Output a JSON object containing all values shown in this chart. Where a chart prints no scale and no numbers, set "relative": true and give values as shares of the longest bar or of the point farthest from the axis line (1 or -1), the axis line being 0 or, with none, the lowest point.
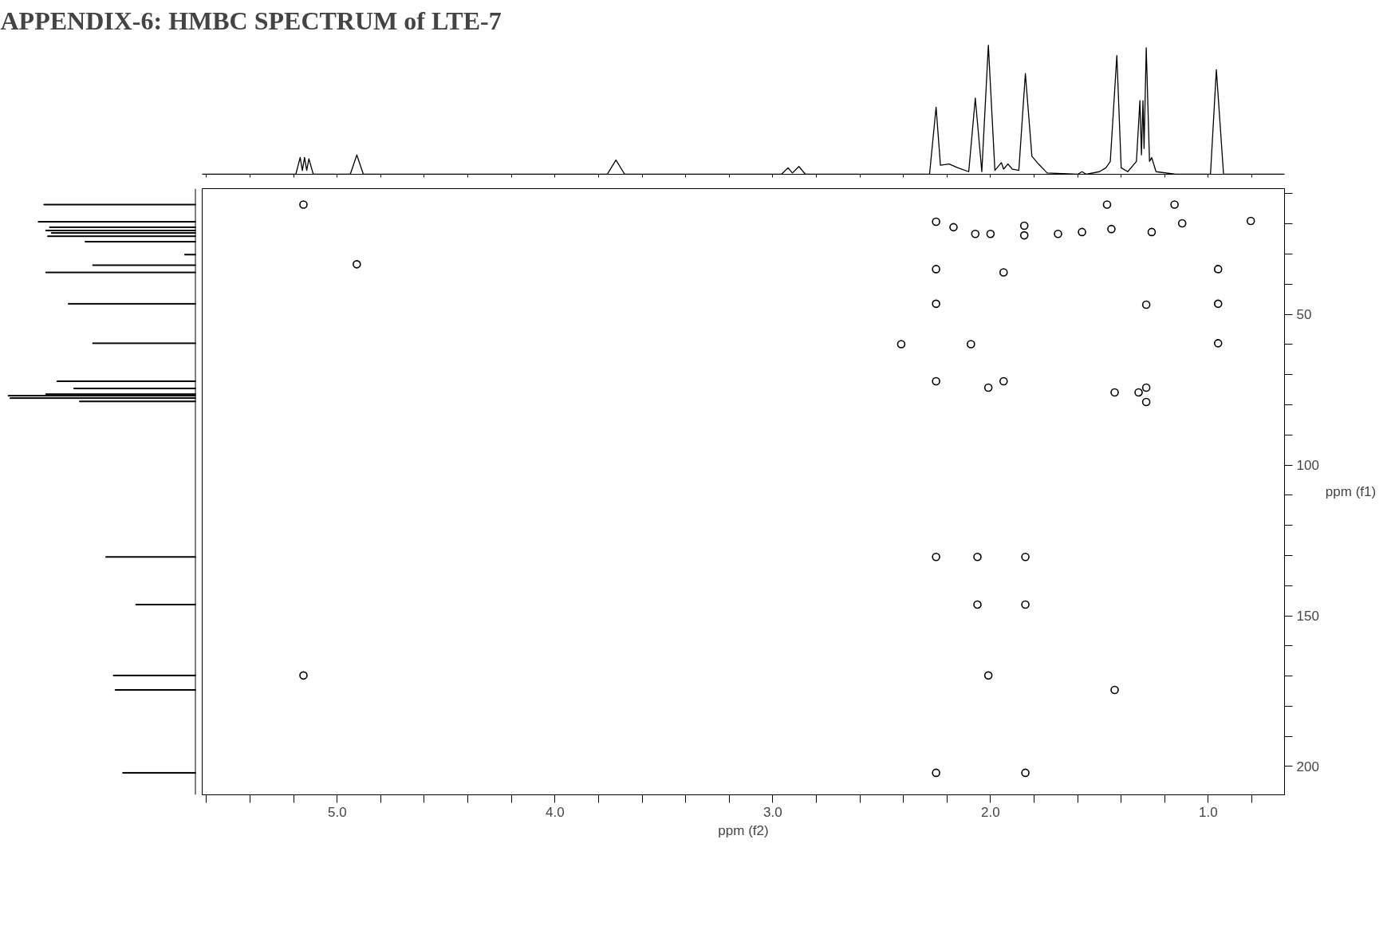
{
  "chart_data": [
    {
      "type": "line",
      "title": "APPENDIX-6: HMBC SPECTRUM of LTE-7",
      "relative": true,
      "tick_labels": false,
      "color": "#000000",
      "xlim": [
        5.62,
        0.65
      ],
      "x": [
        5.62,
        5.19,
        5.17,
        5.16,
        5.15,
        5.14,
        5.13,
        5.11,
        4.94,
        4.91,
        4.88,
        3.76,
        3.72,
        3.68,
        2.96,
        2.93,
        2.91,
        2.88,
        2.85,
        2.28,
        2.25,
        2.23,
        2.19,
        2.15,
        2.1,
        2.07,
        2.04,
        2.01,
        1.98,
        1.95,
        1.94,
        1.92,
        1.9,
        1.87,
        1.84,
        1.81,
        1.78,
        1.74,
        1.6,
        1.58,
        1.56,
        1.5,
        1.47,
        1.45,
        1.42,
        1.4,
        1.37,
        1.33,
        1.314,
        1.307,
        1.3,
        1.295,
        1.285,
        1.27,
        1.26,
        1.24,
        1.15,
        0.99,
        0.963,
        0.93,
        0.65
      ],
      "values": [
        0,
        0,
        0.13,
        0.03,
        0.13,
        0.03,
        0.12,
        0,
        0,
        0.15,
        0,
        0,
        0.11,
        0,
        0,
        0.05,
        0.01,
        0.06,
        0,
        0,
        0.52,
        0.07,
        0.08,
        0.05,
        0.02,
        0.59,
        0.02,
        1.0,
        0.03,
        0.09,
        0.04,
        0.08,
        0.04,
        0.03,
        0.78,
        0.14,
        0.08,
        0.01,
        0,
        0.02,
        0,
        0.02,
        0.05,
        0.1,
        0.92,
        0.05,
        0.02,
        0.1,
        0.57,
        0.15,
        0.57,
        0.2,
        0.98,
        0.1,
        0.13,
        0.02,
        0,
        0,
        0.81,
        0,
        0
      ]
    },
    {
      "type": "bar",
      "orientation": "horizontal",
      "relative": true,
      "tick_labels": false,
      "ylim": [
        209.4,
        8.3
      ],
      "color": "#000000",
      "x": [
        13.6,
        19.3,
        21.1,
        22.2,
        23.0,
        24.1,
        25.9,
        30.2,
        33.7,
        36.1,
        46.5,
        59.6,
        72.2,
        74.6,
        76.5,
        77.0,
        77.8,
        78.9,
        130.5,
        146.3,
        169.8,
        174.6,
        202.1
      ],
      "values": [
        0.81,
        0.84,
        0.78,
        0.8,
        0.77,
        0.79,
        0.59,
        0.06,
        0.55,
        0.8,
        0.68,
        0.55,
        0.74,
        0.65,
        0.8,
        1.0,
        0.99,
        0.62,
        0.48,
        0.32,
        0.44,
        0.43,
        0.39
      ]
    },
    {
      "type": "scatter",
      "xlabel": "ppm (f2)",
      "ylabel": "ppm (f1)",
      "marker": "circle",
      "color": "#000000",
      "xlim": [
        5.62,
        0.65
      ],
      "ylim": [
        209.4,
        8.3
      ],
      "xticks": [
        {
          "value": 5.6,
          "label": null
        },
        {
          "value": 5.4,
          "label": null
        },
        {
          "value": 5.2,
          "label": null
        },
        {
          "value": 5.0,
          "label": "5.0"
        },
        {
          "value": 4.8,
          "label": null
        },
        {
          "value": 4.6,
          "label": null
        },
        {
          "value": 4.4,
          "label": null
        },
        {
          "value": 4.2,
          "label": null
        },
        {
          "value": 4.0,
          "label": "4.0"
        },
        {
          "value": 3.8,
          "label": null
        },
        {
          "value": 3.6,
          "label": null
        },
        {
          "value": 3.4,
          "label": null
        },
        {
          "value": 3.2,
          "label": null
        },
        {
          "value": 3.0,
          "label": "3.0"
        },
        {
          "value": 2.8,
          "label": null
        },
        {
          "value": 2.6,
          "label": null
        },
        {
          "value": 2.4,
          "label": null
        },
        {
          "value": 2.2,
          "label": null
        },
        {
          "value": 2.0,
          "label": "2.0"
        },
        {
          "value": 1.8,
          "label": null
        },
        {
          "value": 1.6,
          "label": null
        },
        {
          "value": 1.4,
          "label": null
        },
        {
          "value": 1.2,
          "label": null
        },
        {
          "value": 1.0,
          "label": "1.0"
        },
        {
          "value": 0.8,
          "label": null
        }
      ],
      "yticks": [
        {
          "value": 10,
          "label": null
        },
        {
          "value": 20,
          "label": null
        },
        {
          "value": 30,
          "label": null
        },
        {
          "value": 40,
          "label": null
        },
        50,
        {
          "value": 60,
          "label": null
        },
        {
          "value": 70,
          "label": null
        },
        {
          "value": 80,
          "label": null
        },
        {
          "value": 90,
          "label": null
        },
        100,
        {
          "value": 110,
          "label": null
        },
        {
          "value": 120,
          "label": null
        },
        {
          "value": 130,
          "label": null
        },
        {
          "value": 140,
          "label": null
        },
        150,
        {
          "value": 160,
          "label": null
        },
        {
          "value": 170,
          "label": null
        },
        {
          "value": 180,
          "label": null
        },
        {
          "value": 190,
          "label": null
        },
        200
      ],
      "x": [
        5.155,
        2.25,
        2.17,
        2.07,
        2.0,
        1.845,
        1.845,
        1.69,
        1.58,
        1.445,
        1.465,
        1.26,
        1.155,
        1.12,
        0.805,
        2.25,
        1.94,
        0.955,
        2.25,
        1.285,
        0.955,
        0.955,
        2.25,
        1.94,
        2.01,
        1.43,
        1.32,
        1.285,
        1.285,
        2.06,
        1.84,
        2.25,
        2.06,
        1.84,
        5.155,
        2.01,
        1.43,
        2.25,
        1.84,
        4.91,
        2.41,
        2.09
      ],
      "values": [
        13.6,
        19.3,
        21.1,
        23.3,
        23.3,
        23.8,
        20.6,
        23.3,
        22.7,
        21.7,
        13.6,
        22.7,
        13.6,
        19.8,
        19.0,
        35.0,
        36.1,
        35.0,
        46.5,
        46.8,
        46.5,
        59.6,
        72.2,
        72.2,
        74.3,
        75.9,
        75.9,
        74.3,
        79.1,
        130.5,
        130.5,
        130.5,
        146.3,
        146.3,
        169.8,
        169.8,
        174.6,
        202.1,
        202.1,
        33.4,
        59.9,
        59.9
      ]
    }
  ]
}
